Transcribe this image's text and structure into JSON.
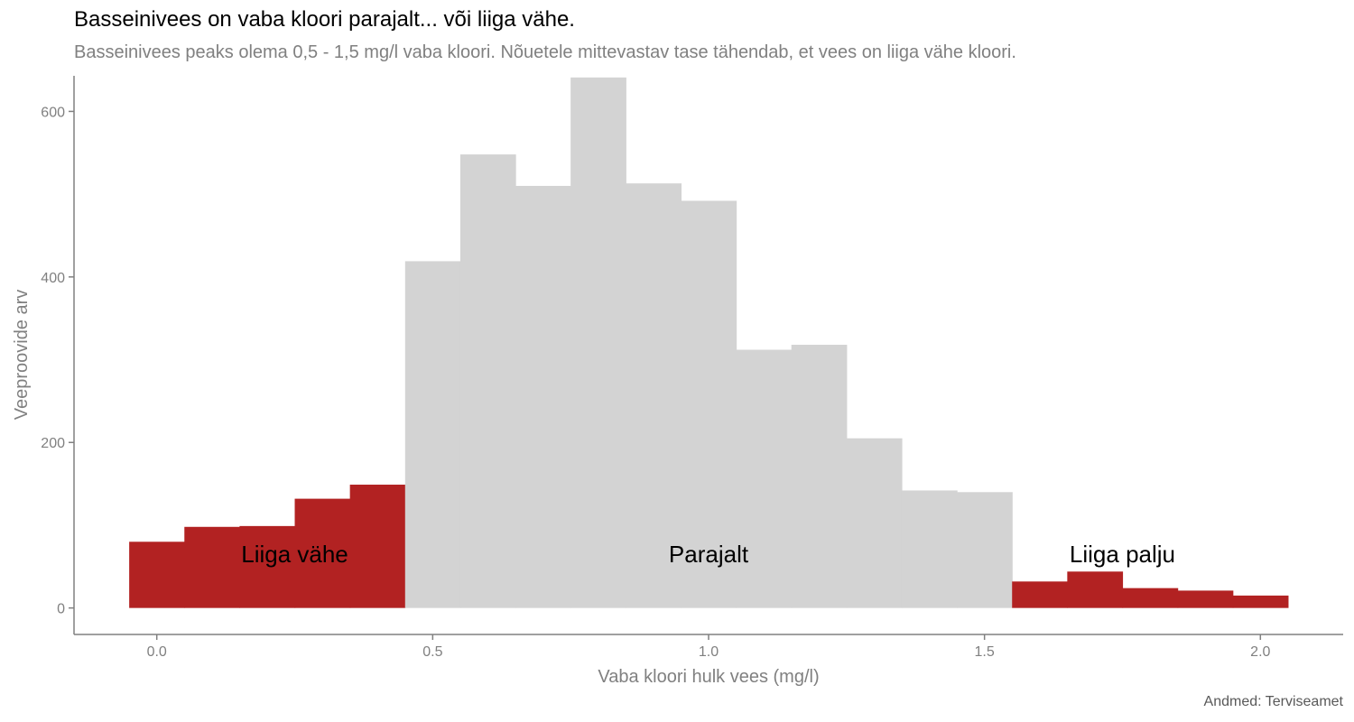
{
  "header": {
    "title": "Basseinivees on vaba kloori parajalt... või liiga vähe.",
    "subtitle": "Basseinivees peaks olema 0,5 - 1,5 mg/l vaba kloori. Nõuetele mittevastav tase tähendab, et vees on liiga vähe kloori.",
    "caption": "Andmed: Terviseamet"
  },
  "chart_data": {
    "type": "bar",
    "xlabel": "Vaba kloori hulk vees (mg/l)",
    "ylabel": "Veeproovide arv",
    "xlim": [
      -0.15,
      2.15
    ],
    "ylim": [
      -32,
      643
    ],
    "bin_width": 0.1,
    "x_ticks": [
      {
        "value": 0.0,
        "label": "0.0"
      },
      {
        "value": 0.5,
        "label": "0.5"
      },
      {
        "value": 1.0,
        "label": "1.0"
      },
      {
        "value": 1.5,
        "label": "1.5"
      },
      {
        "value": 2.0,
        "label": "2.0"
      }
    ],
    "y_ticks": [
      {
        "value": 0,
        "label": "0"
      },
      {
        "value": 200,
        "label": "200"
      },
      {
        "value": 400,
        "label": "400"
      },
      {
        "value": 600,
        "label": "600"
      }
    ],
    "colors": {
      "liiga_vahe": "#B22222",
      "parajalt": "#D3D3D3",
      "liiga_palju": "#B22222"
    },
    "bins": [
      {
        "x": 0.0,
        "count": 80,
        "group": "liiga_vahe"
      },
      {
        "x": 0.1,
        "count": 98,
        "group": "liiga_vahe"
      },
      {
        "x": 0.2,
        "count": 99,
        "group": "liiga_vahe"
      },
      {
        "x": 0.3,
        "count": 132,
        "group": "liiga_vahe"
      },
      {
        "x": 0.4,
        "count": 149,
        "group": "liiga_vahe"
      },
      {
        "x": 0.5,
        "count": 419,
        "group": "parajalt"
      },
      {
        "x": 0.6,
        "count": 548,
        "group": "parajalt"
      },
      {
        "x": 0.7,
        "count": 510,
        "group": "parajalt"
      },
      {
        "x": 0.8,
        "count": 641,
        "group": "parajalt"
      },
      {
        "x": 0.9,
        "count": 513,
        "group": "parajalt"
      },
      {
        "x": 1.0,
        "count": 492,
        "group": "parajalt"
      },
      {
        "x": 1.1,
        "count": 312,
        "group": "parajalt"
      },
      {
        "x": 1.2,
        "count": 318,
        "group": "parajalt"
      },
      {
        "x": 1.3,
        "count": 205,
        "group": "parajalt"
      },
      {
        "x": 1.4,
        "count": 142,
        "group": "parajalt"
      },
      {
        "x": 1.5,
        "count": 140,
        "group": "parajalt"
      },
      {
        "x": 1.6,
        "count": 32,
        "group": "liiga_palju"
      },
      {
        "x": 1.7,
        "count": 44,
        "group": "liiga_palju"
      },
      {
        "x": 1.8,
        "count": 24,
        "group": "liiga_palju"
      },
      {
        "x": 1.9,
        "count": 21,
        "group": "liiga_palju"
      },
      {
        "x": 2.0,
        "count": 15,
        "group": "liiga_palju"
      }
    ],
    "annotations": [
      {
        "text": "Liiga vähe",
        "x": 0.25,
        "y": 65
      },
      {
        "text": "Parajalt",
        "x": 1.0,
        "y": 65
      },
      {
        "text": "Liiga palju",
        "x": 1.75,
        "y": 65
      }
    ]
  }
}
